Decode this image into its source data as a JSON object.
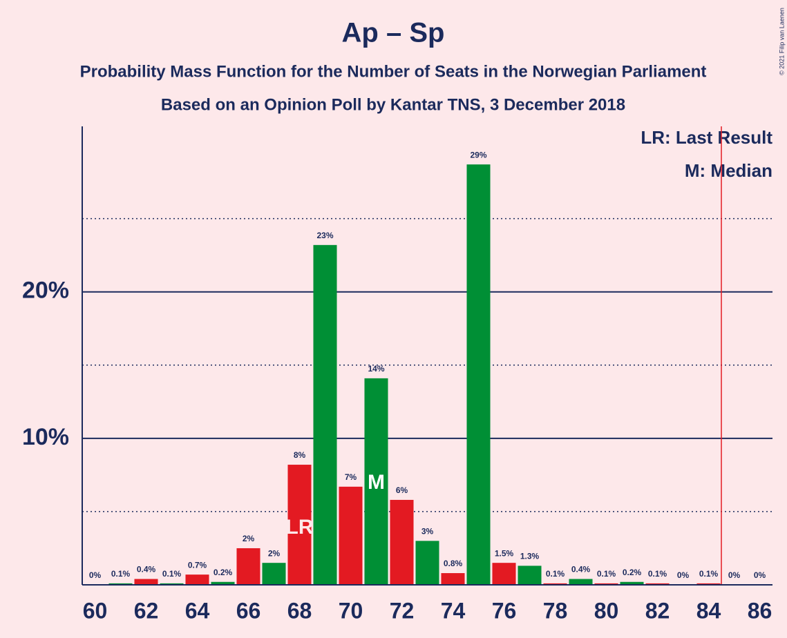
{
  "chart_data": {
    "type": "bar",
    "title": "Ap – Sp",
    "subtitle": "Probability Mass Function for the Number of Seats in the Norwegian Parliament",
    "subtitle2": "Based on an Opinion Poll by Kantar TNS, 3 December 2018",
    "credit": "© 2021 Filip van Laenen",
    "x": [
      60,
      61,
      62,
      63,
      64,
      65,
      66,
      67,
      68,
      69,
      70,
      71,
      72,
      73,
      74,
      75,
      76,
      77,
      78,
      79,
      80,
      81,
      82,
      83,
      84,
      85,
      86
    ],
    "values": [
      0,
      0.1,
      0.4,
      0.1,
      0.7,
      0.2,
      2.5,
      1.5,
      8.2,
      23.2,
      6.7,
      14.1,
      5.8,
      3.0,
      0.8,
      28.7,
      1.5,
      1.3,
      0.1,
      0.4,
      0.1,
      0.2,
      0.1,
      0,
      0.1,
      0,
      0
    ],
    "value_labels": [
      "0%",
      "0.1%",
      "0.4%",
      "0.1%",
      "0.7%",
      "0.2%",
      "2%",
      "2%",
      "8%",
      "23%",
      "7%",
      "14%",
      "6%",
      "3%",
      "0.8%",
      "29%",
      "1.5%",
      "1.3%",
      "0.1%",
      "0.4%",
      "0.1%",
      "0.2%",
      "0.1%",
      "0%",
      "0.1%",
      "0%",
      "0%"
    ],
    "colors": [
      "#e31a22",
      "#008f35",
      "#e31a22",
      "#008f35",
      "#e31a22",
      "#008f35",
      "#e31a22",
      "#008f35",
      "#e31a22",
      "#008f35",
      "#e31a22",
      "#008f35",
      "#e31a22",
      "#008f35",
      "#e31a22",
      "#008f35",
      "#e31a22",
      "#008f35",
      "#e31a22",
      "#008f35",
      "#e31a22",
      "#008f35",
      "#e31a22",
      "#008f35",
      "#e31a22",
      "#008f35",
      "#e31a22"
    ],
    "xlim": [
      59.5,
      86.5
    ],
    "xticks": [
      60,
      62,
      64,
      66,
      68,
      70,
      72,
      74,
      76,
      78,
      80,
      82,
      84,
      86
    ],
    "ylim": [
      0,
      31.3
    ],
    "yticks": [
      {
        "value": 10,
        "label": "10%"
      },
      {
        "value": 20,
        "label": "20%"
      }
    ],
    "minor_yticks": [
      5,
      15,
      25
    ],
    "majority_line": {
      "x": 84.5,
      "color": "#e31a22"
    },
    "annotations": [
      {
        "x": 68,
        "text": "LR"
      },
      {
        "x": 71,
        "text": "M"
      }
    ],
    "legend": [
      "LR: Last Result",
      "M: Median"
    ]
  }
}
